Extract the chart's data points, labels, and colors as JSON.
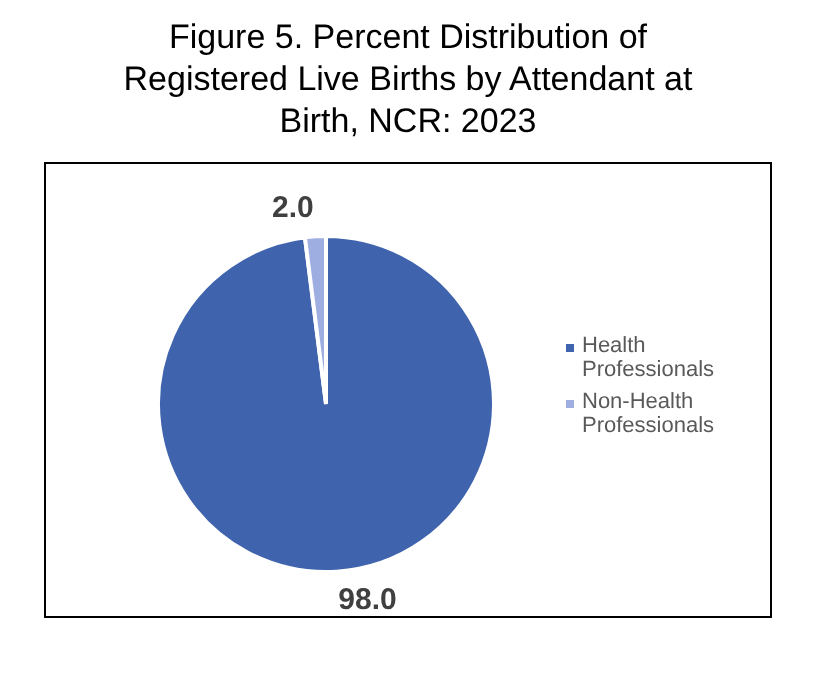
{
  "chart_data": {
    "type": "pie",
    "title": "Figure 5. Percent Distribution of Registered Live Births by Attendant at Birth, NCR: 2023",
    "categories": [
      "Health Professionals",
      "Non-Health Professionals"
    ],
    "values": [
      98.0,
      2.0
    ],
    "colors": [
      "#3f63ad",
      "#9eaee0"
    ],
    "value_labels": [
      "98.0",
      "2.0"
    ],
    "legend": "right"
  }
}
